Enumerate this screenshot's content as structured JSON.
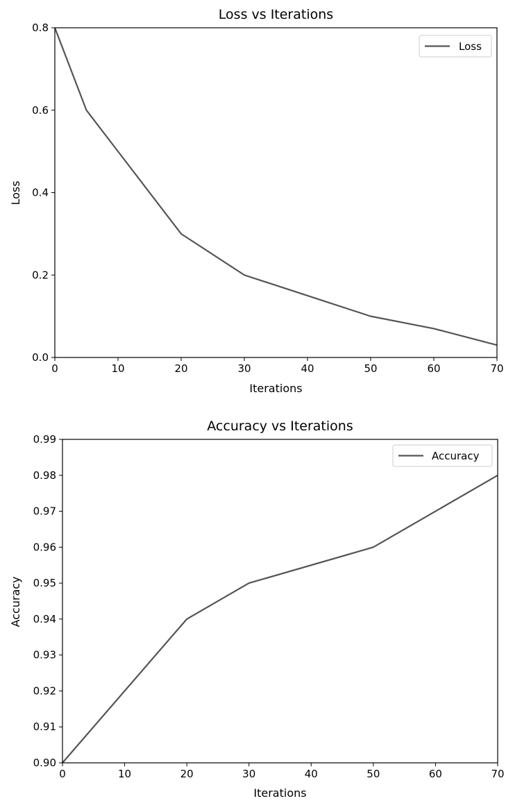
{
  "colors": {
    "line": "#545454",
    "axes": "#000000",
    "legend_border": "#cccccc",
    "background": "#ffffff"
  },
  "chart_data": [
    {
      "type": "line",
      "title": "Loss vs Iterations",
      "xlabel": "Iterations",
      "ylabel": "Loss",
      "xlim": [
        0,
        70
      ],
      "ylim": [
        0.0,
        0.8
      ],
      "xticks": [
        "0",
        "10",
        "20",
        "30",
        "40",
        "50",
        "60",
        "70"
      ],
      "xtick_values": [
        0,
        10,
        20,
        30,
        40,
        50,
        60,
        70
      ],
      "yticks": [
        "0.0",
        "0.2",
        "0.4",
        "0.6",
        "0.8"
      ],
      "ytick_values": [
        0.0,
        0.2,
        0.4,
        0.6,
        0.8
      ],
      "grid": false,
      "legend_position": "top-right",
      "series": [
        {
          "name": "Loss",
          "x": [
            0,
            5,
            10,
            20,
            30,
            40,
            50,
            60,
            70
          ],
          "y": [
            0.8,
            0.6,
            0.5,
            0.3,
            0.2,
            0.15,
            0.1,
            0.07,
            0.03
          ]
        }
      ]
    },
    {
      "type": "line",
      "title": "Accuracy vs Iterations",
      "xlabel": "Iterations",
      "ylabel": "Accuracy",
      "xlim": [
        0,
        70
      ],
      "ylim": [
        0.9,
        0.99
      ],
      "xticks": [
        "0",
        "10",
        "20",
        "30",
        "40",
        "50",
        "60",
        "70"
      ],
      "xtick_values": [
        0,
        10,
        20,
        30,
        40,
        50,
        60,
        70
      ],
      "yticks": [
        "0.90",
        "0.91",
        "0.92",
        "0.93",
        "0.94",
        "0.95",
        "0.96",
        "0.97",
        "0.98",
        "0.99"
      ],
      "ytick_values": [
        0.9,
        0.91,
        0.92,
        0.93,
        0.94,
        0.95,
        0.96,
        0.97,
        0.98,
        0.99
      ],
      "grid": false,
      "legend_position": "top-right",
      "series": [
        {
          "name": "Accuracy",
          "x": [
            0,
            20,
            30,
            50,
            70
          ],
          "y": [
            0.9,
            0.94,
            0.95,
            0.96,
            0.98
          ]
        }
      ]
    }
  ]
}
